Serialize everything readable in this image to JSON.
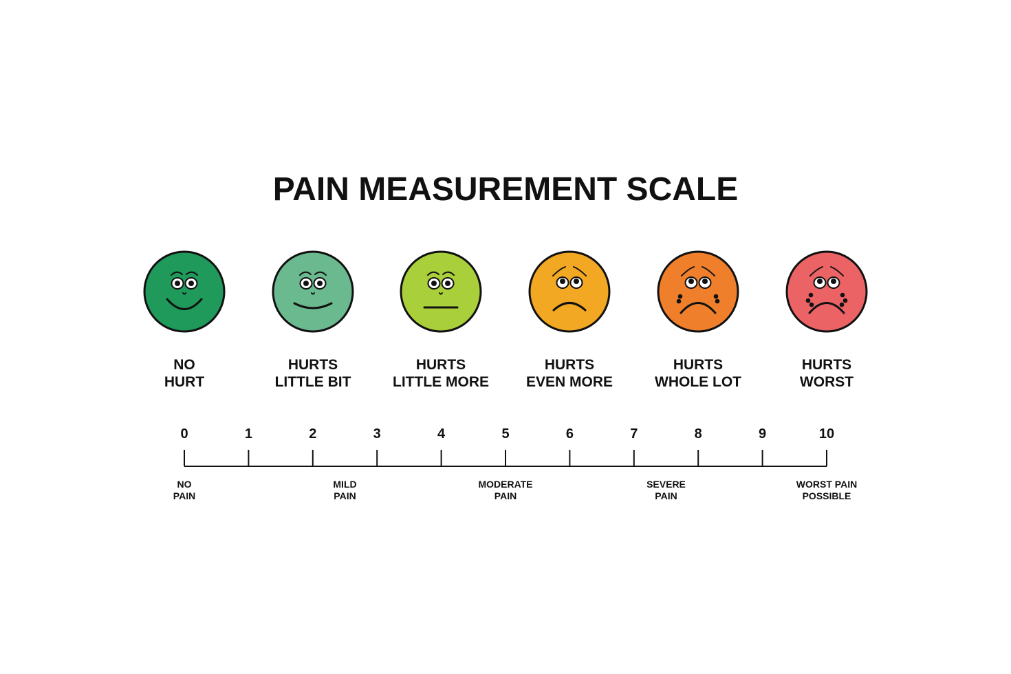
{
  "title": "PAIN MEASUREMENT SCALE",
  "faces": [
    {
      "line1": "NO",
      "line2": "HURT",
      "color": "#1f9a5b",
      "expression": "big-smile",
      "icon": "smiling-face-icon"
    },
    {
      "line1": "HURTS",
      "line2": "LITTLE BIT",
      "color": "#6ab98f",
      "expression": "smile",
      "icon": "slightly-smiling-face-icon"
    },
    {
      "line1": "HURTS",
      "line2": "LITTLE MORE",
      "color": "#a9cf3a",
      "expression": "neutral",
      "icon": "neutral-face-icon"
    },
    {
      "line1": "HURTS",
      "line2": "EVEN MORE",
      "color": "#f2a823",
      "expression": "frown",
      "icon": "worried-face-icon"
    },
    {
      "line1": "HURTS",
      "line2": "WHOLE LOT",
      "color": "#f07f2b",
      "expression": "deep-frown",
      "icon": "sad-face-icon"
    },
    {
      "line1": "HURTS",
      "line2": "WORST",
      "color": "#ec6366",
      "expression": "crying",
      "icon": "crying-face-icon"
    }
  ],
  "scale": {
    "ticks": [
      "0",
      "1",
      "2",
      "3",
      "4",
      "5",
      "6",
      "7",
      "8",
      "9",
      "10"
    ],
    "categories": [
      {
        "at": 0,
        "line1": "NO",
        "line2": "PAIN"
      },
      {
        "at": 2.5,
        "line1": "MILD",
        "line2": "PAIN"
      },
      {
        "at": 5,
        "line1": "MODERATE",
        "line2": "PAIN"
      },
      {
        "at": 7.5,
        "line1": "SEVERE",
        "line2": "PAIN"
      },
      {
        "at": 10,
        "line1": "WORST PAIN",
        "line2": "POSSIBLE"
      }
    ]
  }
}
